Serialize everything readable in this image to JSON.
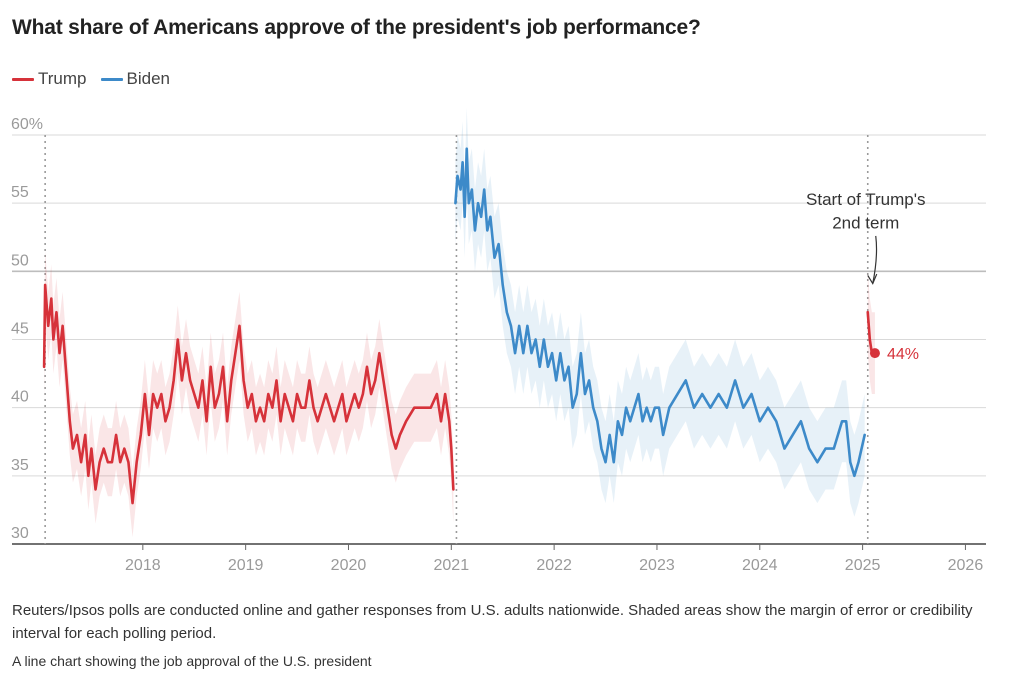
{
  "header": {
    "title": "What share of Americans approve of the president's job performance?"
  },
  "legend": [
    {
      "label": "Trump",
      "color": "#d6323a"
    },
    {
      "label": "Biden",
      "color": "#3d8ac9"
    }
  ],
  "footer": {
    "note": "Reuters/Ipsos polls are conducted online and gather responses from U.S. adults nationwide. Shaded areas show the margin of error or credibility interval for each polling period.",
    "alt_text": "A line chart showing the job approval of the U.S. president"
  },
  "chart_data": {
    "type": "line",
    "title": "What share of Americans approve of the president's job performance?",
    "xlabel": "",
    "ylabel": "",
    "xlim": [
      2017.0,
      2026.2
    ],
    "ylim": [
      30,
      60
    ],
    "y_ticks": [
      {
        "value": 60,
        "label": "60%"
      },
      {
        "value": 55,
        "label": "55"
      },
      {
        "value": 50,
        "label": "50"
      },
      {
        "value": 45,
        "label": "45"
      },
      {
        "value": 40,
        "label": "40"
      },
      {
        "value": 35,
        "label": "35"
      },
      {
        "value": 30,
        "label": "30"
      }
    ],
    "x_ticks": [
      {
        "value": 2018,
        "label": "2018"
      },
      {
        "value": 2019,
        "label": "2019"
      },
      {
        "value": 2020,
        "label": "2020"
      },
      {
        "value": 2021,
        "label": "2021"
      },
      {
        "value": 2022,
        "label": "2022"
      },
      {
        "value": 2023,
        "label": "2023"
      },
      {
        "value": 2024,
        "label": "2024"
      },
      {
        "value": 2025,
        "label": "2025"
      },
      {
        "value": 2026,
        "label": "2026"
      }
    ],
    "term_starts": [
      2017.05,
      2021.05,
      2025.05
    ],
    "grid": true,
    "legend_position": "top-left",
    "series": [
      {
        "name": "Trump",
        "color": "#d6323a",
        "margin": 2.5,
        "points": [
          [
            2017.04,
            43
          ],
          [
            2017.05,
            49
          ],
          [
            2017.08,
            46
          ],
          [
            2017.11,
            48
          ],
          [
            2017.13,
            45
          ],
          [
            2017.16,
            47
          ],
          [
            2017.19,
            44
          ],
          [
            2017.22,
            46
          ],
          [
            2017.26,
            42
          ],
          [
            2017.29,
            39
          ],
          [
            2017.32,
            37
          ],
          [
            2017.36,
            38
          ],
          [
            2017.4,
            36
          ],
          [
            2017.44,
            38
          ],
          [
            2017.47,
            35
          ],
          [
            2017.5,
            37
          ],
          [
            2017.54,
            34
          ],
          [
            2017.58,
            36
          ],
          [
            2017.62,
            37
          ],
          [
            2017.66,
            36
          ],
          [
            2017.7,
            36
          ],
          [
            2017.74,
            38
          ],
          [
            2017.78,
            36
          ],
          [
            2017.82,
            37
          ],
          [
            2017.86,
            36
          ],
          [
            2017.9,
            33
          ],
          [
            2017.94,
            36
          ],
          [
            2017.98,
            38
          ],
          [
            2018.02,
            41
          ],
          [
            2018.06,
            38
          ],
          [
            2018.1,
            41
          ],
          [
            2018.14,
            40
          ],
          [
            2018.18,
            41
          ],
          [
            2018.22,
            39
          ],
          [
            2018.26,
            40
          ],
          [
            2018.3,
            42
          ],
          [
            2018.34,
            45
          ],
          [
            2018.38,
            42
          ],
          [
            2018.42,
            44
          ],
          [
            2018.46,
            42
          ],
          [
            2018.5,
            41
          ],
          [
            2018.54,
            40
          ],
          [
            2018.58,
            42
          ],
          [
            2018.62,
            39
          ],
          [
            2018.66,
            43
          ],
          [
            2018.7,
            40
          ],
          [
            2018.74,
            41
          ],
          [
            2018.78,
            43
          ],
          [
            2018.82,
            39
          ],
          [
            2018.86,
            42
          ],
          [
            2018.9,
            44
          ],
          [
            2018.94,
            46
          ],
          [
            2018.98,
            42
          ],
          [
            2019.02,
            40
          ],
          [
            2019.06,
            41
          ],
          [
            2019.1,
            39
          ],
          [
            2019.14,
            40
          ],
          [
            2019.18,
            39
          ],
          [
            2019.22,
            41
          ],
          [
            2019.26,
            40
          ],
          [
            2019.3,
            42
          ],
          [
            2019.34,
            39
          ],
          [
            2019.38,
            41
          ],
          [
            2019.42,
            40
          ],
          [
            2019.46,
            39
          ],
          [
            2019.5,
            41
          ],
          [
            2019.54,
            40
          ],
          [
            2019.58,
            40
          ],
          [
            2019.62,
            42
          ],
          [
            2019.66,
            40
          ],
          [
            2019.7,
            39
          ],
          [
            2019.74,
            40
          ],
          [
            2019.78,
            41
          ],
          [
            2019.82,
            40
          ],
          [
            2019.86,
            39
          ],
          [
            2019.9,
            40
          ],
          [
            2019.94,
            41
          ],
          [
            2019.98,
            39
          ],
          [
            2020.02,
            40
          ],
          [
            2020.06,
            41
          ],
          [
            2020.1,
            40
          ],
          [
            2020.14,
            41
          ],
          [
            2020.18,
            43
          ],
          [
            2020.22,
            41
          ],
          [
            2020.26,
            42
          ],
          [
            2020.3,
            44
          ],
          [
            2020.34,
            42
          ],
          [
            2020.38,
            40
          ],
          [
            2020.42,
            38
          ],
          [
            2020.46,
            37
          ],
          [
            2020.5,
            38
          ],
          [
            2020.56,
            39
          ],
          [
            2020.64,
            40
          ],
          [
            2020.72,
            40
          ],
          [
            2020.8,
            40
          ],
          [
            2020.86,
            41
          ],
          [
            2020.9,
            39
          ],
          [
            2020.94,
            41
          ],
          [
            2020.98,
            39
          ],
          [
            2021.0,
            37
          ],
          [
            2021.02,
            34
          ]
        ]
      },
      {
        "name": "Biden",
        "color": "#3d8ac9",
        "margin": 3,
        "points": [
          [
            2021.04,
            55
          ],
          [
            2021.06,
            57
          ],
          [
            2021.09,
            56
          ],
          [
            2021.11,
            58
          ],
          [
            2021.13,
            54
          ],
          [
            2021.15,
            59
          ],
          [
            2021.17,
            55
          ],
          [
            2021.2,
            56
          ],
          [
            2021.23,
            53
          ],
          [
            2021.26,
            55
          ],
          [
            2021.29,
            54
          ],
          [
            2021.32,
            56
          ],
          [
            2021.35,
            53
          ],
          [
            2021.38,
            54
          ],
          [
            2021.42,
            51
          ],
          [
            2021.46,
            52
          ],
          [
            2021.5,
            49
          ],
          [
            2021.54,
            47
          ],
          [
            2021.58,
            46
          ],
          [
            2021.62,
            44
          ],
          [
            2021.66,
            46
          ],
          [
            2021.7,
            44
          ],
          [
            2021.74,
            46
          ],
          [
            2021.78,
            44
          ],
          [
            2021.82,
            45
          ],
          [
            2021.86,
            43
          ],
          [
            2021.9,
            45
          ],
          [
            2021.94,
            43
          ],
          [
            2021.98,
            44
          ],
          [
            2022.02,
            42
          ],
          [
            2022.06,
            44
          ],
          [
            2022.1,
            42
          ],
          [
            2022.14,
            43
          ],
          [
            2022.18,
            40
          ],
          [
            2022.22,
            41
          ],
          [
            2022.26,
            44
          ],
          [
            2022.3,
            41
          ],
          [
            2022.34,
            42
          ],
          [
            2022.38,
            40
          ],
          [
            2022.42,
            39
          ],
          [
            2022.46,
            37
          ],
          [
            2022.5,
            36
          ],
          [
            2022.54,
            38
          ],
          [
            2022.58,
            36
          ],
          [
            2022.62,
            39
          ],
          [
            2022.66,
            38
          ],
          [
            2022.7,
            40
          ],
          [
            2022.74,
            39
          ],
          [
            2022.78,
            40
          ],
          [
            2022.82,
            41
          ],
          [
            2022.86,
            39
          ],
          [
            2022.9,
            40
          ],
          [
            2022.94,
            39
          ],
          [
            2022.98,
            40
          ],
          [
            2023.02,
            40
          ],
          [
            2023.06,
            38
          ],
          [
            2023.12,
            40
          ],
          [
            2023.2,
            41
          ],
          [
            2023.28,
            42
          ],
          [
            2023.36,
            40
          ],
          [
            2023.44,
            41
          ],
          [
            2023.52,
            40
          ],
          [
            2023.6,
            41
          ],
          [
            2023.68,
            40
          ],
          [
            2023.76,
            42
          ],
          [
            2023.84,
            40
          ],
          [
            2023.92,
            41
          ],
          [
            2024.0,
            39
          ],
          [
            2024.08,
            40
          ],
          [
            2024.16,
            39
          ],
          [
            2024.24,
            37
          ],
          [
            2024.32,
            38
          ],
          [
            2024.4,
            39
          ],
          [
            2024.48,
            37
          ],
          [
            2024.56,
            36
          ],
          [
            2024.64,
            37
          ],
          [
            2024.72,
            37
          ],
          [
            2024.8,
            39
          ],
          [
            2024.84,
            39
          ],
          [
            2024.88,
            36
          ],
          [
            2024.92,
            35
          ],
          [
            2024.96,
            36
          ],
          [
            2025.02,
            38
          ]
        ]
      },
      {
        "name": "Trump (2nd term)",
        "color": "#d6323a",
        "margin": 3,
        "points": [
          [
            2025.05,
            47
          ],
          [
            2025.07,
            45
          ],
          [
            2025.09,
            44
          ],
          [
            2025.12,
            44
          ]
        ]
      }
    ],
    "annotations": {
      "term_label_line1": "Start of Trump's",
      "term_label_line2": "2nd term",
      "end_label": "44%",
      "end_value": 44,
      "end_x": 2025.12
    }
  }
}
